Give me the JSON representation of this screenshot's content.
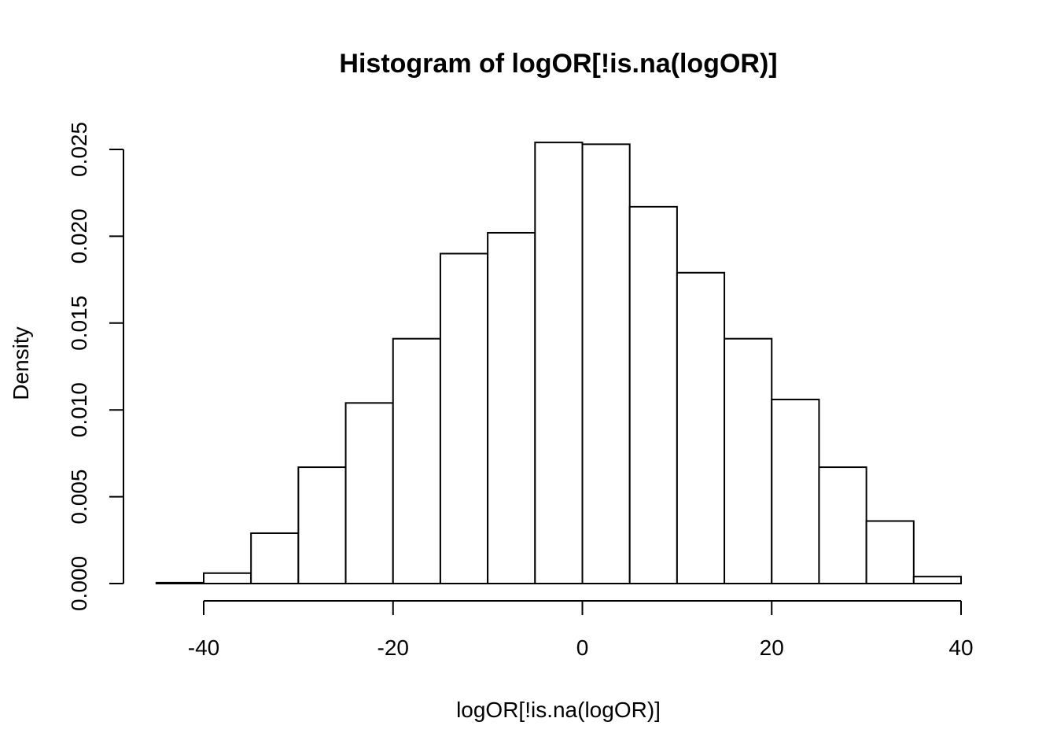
{
  "chart_data": {
    "type": "bar",
    "title": "Histogram of logOR[!is.na(logOR)]",
    "xlabel": "logOR[!is.na(logOR)]",
    "ylabel": "Density",
    "bins": [
      {
        "from": -45,
        "to": -40,
        "value": 5e-05
      },
      {
        "from": -40,
        "to": -35,
        "value": 0.0006
      },
      {
        "from": -35,
        "to": -30,
        "value": 0.0029
      },
      {
        "from": -30,
        "to": -25,
        "value": 0.0067
      },
      {
        "from": -25,
        "to": -20,
        "value": 0.0104
      },
      {
        "from": -20,
        "to": -15,
        "value": 0.0141
      },
      {
        "from": -15,
        "to": -10,
        "value": 0.019
      },
      {
        "from": -10,
        "to": -5,
        "value": 0.0202
      },
      {
        "from": -5,
        "to": 0,
        "value": 0.0254
      },
      {
        "from": 0,
        "to": 5,
        "value": 0.0253
      },
      {
        "from": 5,
        "to": 10,
        "value": 0.0217
      },
      {
        "from": 10,
        "to": 15,
        "value": 0.0179
      },
      {
        "from": 15,
        "to": 20,
        "value": 0.0141
      },
      {
        "from": 20,
        "to": 25,
        "value": 0.0106
      },
      {
        "from": 25,
        "to": 30,
        "value": 0.0067
      },
      {
        "from": 30,
        "to": 35,
        "value": 0.0036
      },
      {
        "from": 35,
        "to": 40,
        "value": 0.0004
      }
    ],
    "xlim": [
      -45,
      40
    ],
    "ylim": [
      0,
      0.025
    ],
    "x_ticks": [
      -40,
      -20,
      0,
      20,
      40
    ],
    "x_tick_labels": [
      "-40",
      "-20",
      "0",
      "20",
      "40"
    ],
    "y_ticks": [
      0,
      0.005,
      0.01,
      0.015,
      0.02,
      0.025
    ],
    "y_tick_labels": [
      "0.000",
      "0.005",
      "0.010",
      "0.015",
      "0.020",
      "0.025"
    ],
    "grid": false,
    "bar_fill": "#ffffff",
    "bar_stroke": "#000000"
  }
}
